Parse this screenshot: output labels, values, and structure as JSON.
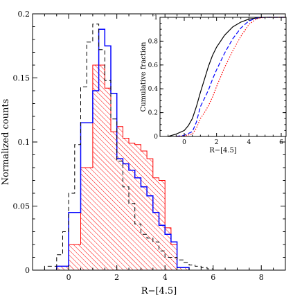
{
  "chart_data": [
    {
      "type": "histogram",
      "xlabel": "R−[4.5]",
      "ylabel": "Normalized counts",
      "xlim": [
        -1.5,
        9.0
      ],
      "ylim": [
        0,
        0.2
      ],
      "xticks": [
        0,
        2,
        4,
        6,
        8
      ],
      "yticks": [
        0,
        0.05,
        0.1,
        0.15,
        0.2
      ],
      "ytick_labels": [
        "0",
        "0.05",
        "0.1",
        "0.15",
        "0.2"
      ],
      "series": [
        {
          "style": "dashed step",
          "color": "#000000",
          "bin_edges": [
            -1.0,
            -0.75,
            -0.5,
            -0.25,
            0.0,
            0.25,
            0.5,
            0.75,
            1.0,
            1.25,
            1.5,
            1.75,
            2.0,
            2.25,
            2.5,
            2.75,
            3.0,
            3.25,
            3.5,
            3.75,
            4.0,
            4.25,
            4.5,
            4.75,
            5.0,
            5.25,
            5.5,
            5.75,
            6.0
          ],
          "values": [
            0.003,
            0.003,
            0.012,
            0.03,
            0.06,
            0.098,
            0.143,
            0.178,
            0.192,
            0.172,
            0.148,
            0.118,
            0.085,
            0.065,
            0.052,
            0.036,
            0.028,
            0.025,
            0.022,
            0.015,
            0.01,
            0.01,
            0.008,
            0.006,
            0.004,
            0.003,
            0.002,
            0.001
          ]
        },
        {
          "style": "solid step",
          "color": "#0000ff",
          "bin_edges": [
            -0.5,
            0.0,
            0.5,
            1.0,
            1.25,
            1.5,
            1.75,
            2.0,
            2.25,
            2.5,
            2.75,
            3.0,
            3.25,
            3.5,
            3.75,
            4.0,
            4.25,
            4.5,
            5.0
          ],
          "values": [
            0.003,
            0.045,
            0.115,
            0.14,
            0.188,
            0.175,
            0.138,
            0.087,
            0.083,
            0.078,
            0.072,
            0.065,
            0.058,
            0.045,
            0.035,
            0.028,
            0.022,
            0.002
          ]
        },
        {
          "style": "red hatched filled",
          "color": "#ff0000",
          "bin_edges": [
            -0.5,
            0.0,
            0.5,
            1.0,
            1.25,
            1.5,
            1.75,
            2.0,
            2.25,
            2.5,
            2.75,
            3.0,
            3.25,
            3.5,
            3.75,
            4.0,
            4.25,
            4.5,
            5.0
          ],
          "values": [
            0.003,
            0.02,
            0.08,
            0.16,
            0.16,
            0.142,
            0.108,
            0.112,
            0.103,
            0.099,
            0.098,
            0.093,
            0.087,
            0.072,
            0.07,
            0.033,
            0.02,
            0.002
          ]
        }
      ],
      "inset": {
        "type": "line",
        "xlabel": "R−[4.5]",
        "ylabel": "Cumulative fraction",
        "xlim": [
          -1.5,
          6.3
        ],
        "ylim": [
          0,
          1.0
        ],
        "xticks": [
          0,
          2,
          4,
          6
        ],
        "yticks": [
          0,
          0.2,
          0.4,
          0.6,
          0.8,
          1
        ],
        "ytick_labels": [
          "0",
          "0.2",
          "0.4",
          "0.6",
          "0.8",
          "1"
        ],
        "series": [
          {
            "style": "solid",
            "color": "#000000",
            "x": [
              -1.0,
              -0.5,
              0.0,
              0.25,
              0.5,
              0.75,
              1.0,
              1.25,
              1.5,
              1.75,
              2.0,
              2.5,
              3.0,
              3.5,
              4.0,
              4.5,
              5.0,
              6.3
            ],
            "y": [
              0.0,
              0.02,
              0.05,
              0.09,
              0.15,
              0.25,
              0.37,
              0.48,
              0.59,
              0.68,
              0.75,
              0.85,
              0.92,
              0.96,
              0.985,
              0.995,
              1.0,
              1.0
            ]
          },
          {
            "style": "dashed",
            "color": "#0000ff",
            "x": [
              -0.5,
              0.0,
              0.5,
              0.75,
              1.0,
              1.25,
              1.5,
              1.75,
              2.0,
              2.5,
              3.0,
              3.5,
              4.0,
              4.5,
              5.0,
              6.3
            ],
            "y": [
              0.0,
              0.01,
              0.04,
              0.12,
              0.25,
              0.32,
              0.39,
              0.48,
              0.56,
              0.7,
              0.82,
              0.91,
              0.97,
              0.995,
              1.0,
              1.0
            ]
          },
          {
            "style": "dotted",
            "color": "#ff0000",
            "x": [
              -0.5,
              0.0,
              0.5,
              0.75,
              1.0,
              1.25,
              1.5,
              1.75,
              2.0,
              2.5,
              3.0,
              3.5,
              4.0,
              4.5,
              5.0,
              6.3
            ],
            "y": [
              0.0,
              0.005,
              0.02,
              0.07,
              0.15,
              0.2,
              0.26,
              0.33,
              0.42,
              0.58,
              0.72,
              0.84,
              0.94,
              0.99,
              1.0,
              1.0
            ]
          }
        ]
      }
    }
  ]
}
